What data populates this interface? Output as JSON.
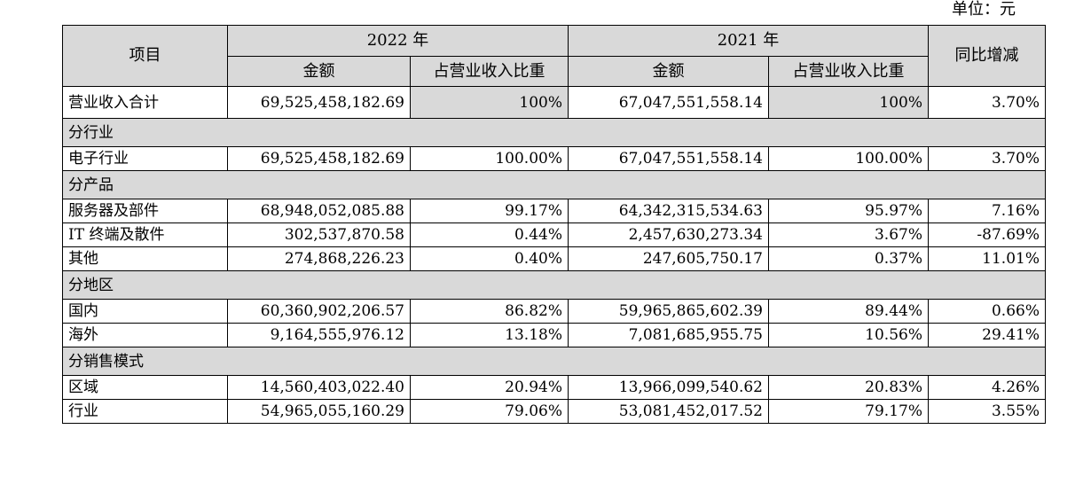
{
  "unit": "单位：元",
  "header": {
    "item": "项目",
    "year_2022": "2022 年",
    "year_2021": "2021 年",
    "amount": "金额",
    "share": "占营业收入比重",
    "yoy": "同比增减"
  },
  "total": {
    "label": "营业收入合计",
    "amt_2022": "69,525,458,182.69",
    "pct_2022": "100%",
    "amt_2021": "67,047,551,558.14",
    "pct_2021": "100%",
    "yoy": "3.70%"
  },
  "sections": [
    {
      "title": "分行业",
      "rows": [
        {
          "label": "电子行业",
          "amt_2022": "69,525,458,182.69",
          "pct_2022": "100.00%",
          "amt_2021": "67,047,551,558.14",
          "pct_2021": "100.00%",
          "yoy": "3.70%"
        }
      ]
    },
    {
      "title": "分产品",
      "rows": [
        {
          "label": "服务器及部件",
          "amt_2022": "68,948,052,085.88",
          "pct_2022": "99.17%",
          "amt_2021": "64,342,315,534.63",
          "pct_2021": "95.97%",
          "yoy": "7.16%"
        },
        {
          "label": "IT 终端及散件",
          "amt_2022": "302,537,870.58",
          "pct_2022": "0.44%",
          "amt_2021": "2,457,630,273.34",
          "pct_2021": "3.67%",
          "yoy": "-87.69%"
        },
        {
          "label": "其他",
          "amt_2022": "274,868,226.23",
          "pct_2022": "0.40%",
          "amt_2021": "247,605,750.17",
          "pct_2021": "0.37%",
          "yoy": "11.01%"
        }
      ]
    },
    {
      "title": "分地区",
      "rows": [
        {
          "label": "国内",
          "amt_2022": "60,360,902,206.57",
          "pct_2022": "86.82%",
          "amt_2021": "59,965,865,602.39",
          "pct_2021": "89.44%",
          "yoy": "0.66%"
        },
        {
          "label": "海外",
          "amt_2022": "9,164,555,976.12",
          "pct_2022": "13.18%",
          "amt_2021": "7,081,685,955.75",
          "pct_2021": "10.56%",
          "yoy": "29.41%"
        }
      ]
    },
    {
      "title": "分销售模式",
      "rows": [
        {
          "label": "区域",
          "amt_2022": "14,560,403,022.40",
          "pct_2022": "20.94%",
          "amt_2021": "13,966,099,540.62",
          "pct_2021": "20.83%",
          "yoy": "4.26%"
        },
        {
          "label": "行业",
          "amt_2022": "54,965,055,160.29",
          "pct_2022": "79.06%",
          "amt_2021": "53,081,452,017.52",
          "pct_2021": "79.17%",
          "yoy": "3.55%"
        }
      ]
    }
  ]
}
